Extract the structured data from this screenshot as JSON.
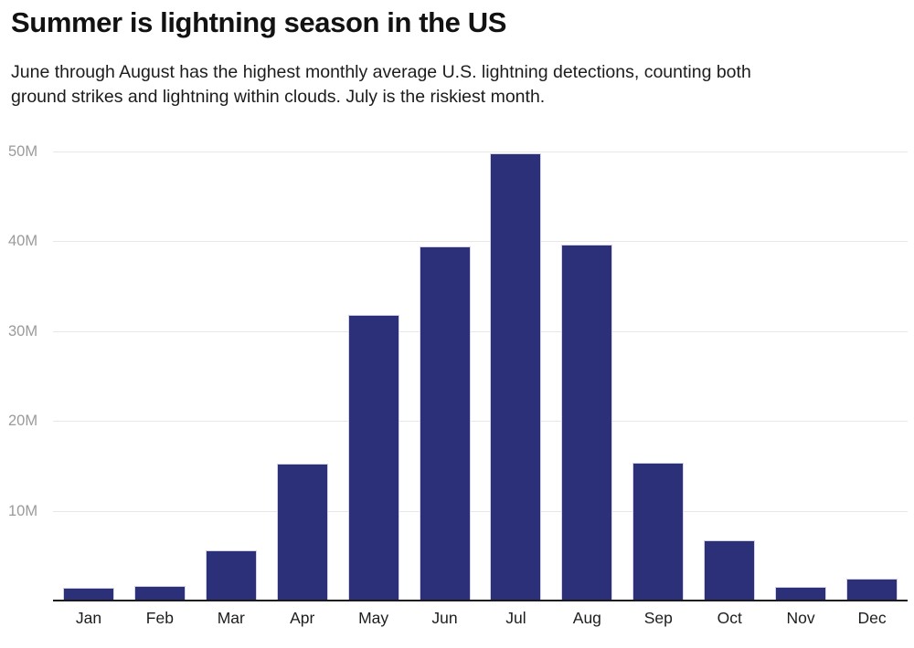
{
  "chart_data": {
    "type": "bar",
    "title": "Summer is lightning season in the US",
    "subtitle_line1": "June through August has the highest monthly average U.S. lightning detections, counting both",
    "subtitle_line2": "ground strikes and lightning within clouds. July is the riskiest month.",
    "categories": [
      "Jan",
      "Feb",
      "Mar",
      "Apr",
      "May",
      "Jun",
      "Jul",
      "Aug",
      "Sep",
      "Oct",
      "Nov",
      "Dec"
    ],
    "values": [
      1.4,
      1.6,
      5.6,
      15.2,
      31.8,
      39.4,
      49.8,
      39.6,
      15.3,
      6.7,
      1.5,
      2.4
    ],
    "value_unit": "M",
    "values_are": "monthly average U.S. lightning detections, millions",
    "highlight_note": "July is the peak month at ~49.8M",
    "yticks": [
      {
        "v": 10,
        "label": "10M"
      },
      {
        "v": 20,
        "label": "20M"
      },
      {
        "v": 30,
        "label": "30M"
      },
      {
        "v": 40,
        "label": "40M"
      },
      {
        "v": 50,
        "label": "50M"
      }
    ],
    "ylim": [
      0,
      50
    ],
    "xlabel": "",
    "ylabel": "",
    "grid": "horizontal-only",
    "legend": "none",
    "colors": {
      "bar": "#2b3078",
      "bar_edge": "#d4d4e6",
      "gridline": "#e7e7e7",
      "axis_line": "#1a1a1a",
      "y_tick_text": "#9b9b9b",
      "x_tick_text": "#1d1d1d",
      "title_text": "#121212",
      "subtitle_text": "#1c1c1c",
      "background": "#ffffff"
    }
  }
}
